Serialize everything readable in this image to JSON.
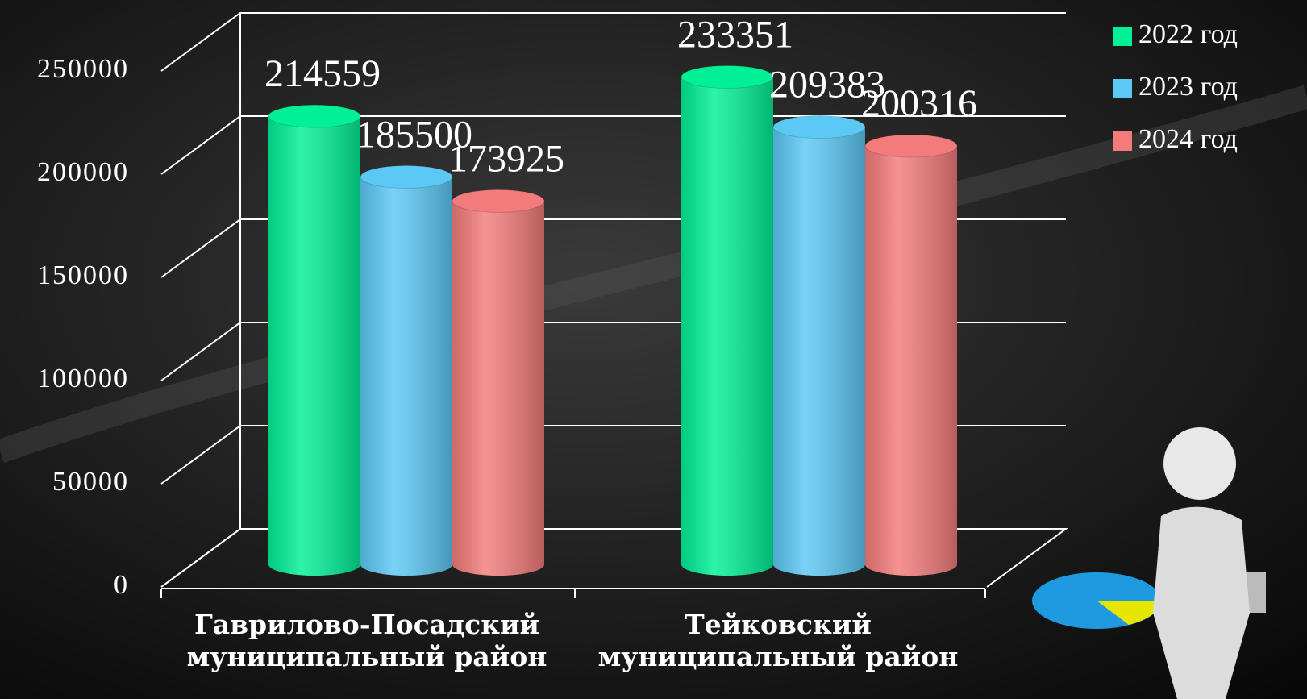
{
  "chart_data": {
    "type": "bar",
    "categories": [
      "Гаврилово-Посадский муниципальный район",
      "Тейковский муниципальный район"
    ],
    "series": [
      {
        "name": "2022 год",
        "color": "#00f097",
        "values": [
          214559,
          233351
        ]
      },
      {
        "name": "2023 год",
        "color": "#5cc9f5",
        "values": [
          185500,
          209383
        ]
      },
      {
        "name": "2024 год",
        "color": "#f47b7b",
        "values": [
          173925,
          200316
        ]
      }
    ],
    "ylim": [
      0,
      250000
    ],
    "yticks": [
      0,
      50000,
      100000,
      150000,
      200000,
      250000
    ],
    "grid": true,
    "legend": "top-right"
  }
}
